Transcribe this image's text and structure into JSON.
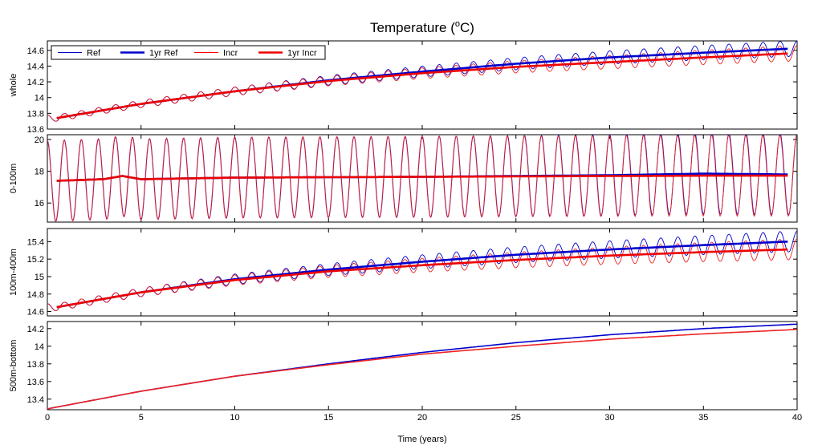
{
  "chart_data": {
    "type": "line",
    "title": "Temperature (°C)",
    "title_main": "Temperature (",
    "title_unit_sup": "o",
    "title_unit": "C)",
    "xlabel": "Time (years)",
    "xlim": [
      0,
      40
    ],
    "xticks": [
      0,
      5,
      10,
      15,
      20,
      25,
      30,
      35,
      40
    ],
    "grid": false,
    "legend": {
      "placement": "top-left of first panel",
      "entries": [
        {
          "label": "Ref",
          "color": "#0000cc",
          "style": "thin"
        },
        {
          "label": "1yr Ref",
          "color": "#0000cc",
          "style": "thick"
        },
        {
          "label": "Incr",
          "color": "#ff0000",
          "style": "thin"
        },
        {
          "label": "1yr Incr",
          "color": "#ee0000",
          "style": "thick"
        }
      ]
    },
    "colors": {
      "ref": "#0000cc",
      "incr": "#ee2222",
      "incr_thick": "#ee0000"
    },
    "panels": [
      {
        "ylabel": "whole",
        "ylim": [
          13.6,
          14.72
        ],
        "yticks": [
          13.6,
          13.8,
          14,
          14.2,
          14.4,
          14.6
        ],
        "ytick_labels": [
          "13.6",
          "13.8",
          "14",
          "14.2",
          "14.4",
          "14.6"
        ],
        "oscillation": {
          "periods_per_year": 1.1,
          "amplitude_start": 0.04,
          "amplitude_end": 0.1
        },
        "series": [
          {
            "name": "1yr Ref",
            "x": [
              0.5,
              5,
              10,
              15,
              20,
              25,
              30,
              35,
              39.5
            ],
            "y": [
              13.74,
              13.92,
              14.08,
              14.22,
              14.33,
              14.43,
              14.51,
              14.57,
              14.62
            ]
          },
          {
            "name": "1yr Incr",
            "x": [
              0.5,
              5,
              10,
              15,
              20,
              25,
              30,
              35,
              39.5
            ],
            "y": [
              13.74,
              13.92,
              14.08,
              14.21,
              14.31,
              14.39,
              14.45,
              14.51,
              14.56
            ]
          }
        ]
      },
      {
        "ylabel": "0-100m",
        "ylim": [
          14.8,
          20.3
        ],
        "yticks": [
          16,
          18,
          20
        ],
        "ytick_labels": [
          "16",
          "18",
          "20"
        ],
        "oscillation": {
          "periods_per_year": 1.1,
          "amplitude_start": 2.55,
          "amplitude_end": 2.55
        },
        "series": [
          {
            "name": "1yr Ref",
            "x": [
              0.5,
              3,
              4,
              5,
              10,
              20,
              30,
              35,
              39.5
            ],
            "y": [
              17.4,
              17.5,
              17.7,
              17.5,
              17.6,
              17.65,
              17.75,
              17.85,
              17.8
            ]
          },
          {
            "name": "1yr Incr",
            "x": [
              0.5,
              3,
              4,
              5,
              10,
              20,
              30,
              35,
              39.5
            ],
            "y": [
              17.4,
              17.5,
              17.7,
              17.5,
              17.6,
              17.65,
              17.7,
              17.72,
              17.72
            ]
          }
        ]
      },
      {
        "ylabel": "100m-400m",
        "ylim": [
          14.55,
          15.55
        ],
        "yticks": [
          14.6,
          14.8,
          15,
          15.2,
          15.4
        ],
        "ytick_labels": [
          "14.6",
          "14.8",
          "15",
          "15.2",
          "15.4"
        ],
        "oscillation": {
          "periods_per_year": 1.1,
          "amplitude_start": 0.04,
          "amplitude_end": 0.12
        },
        "series": [
          {
            "name": "1yr Ref",
            "x": [
              0.5,
              5,
              10,
              15,
              20,
              25,
              30,
              35,
              39.5
            ],
            "y": [
              14.65,
              14.82,
              14.97,
              15.08,
              15.17,
              15.25,
              15.31,
              15.36,
              15.4
            ]
          },
          {
            "name": "1yr Incr",
            "x": [
              0.5,
              5,
              10,
              15,
              20,
              25,
              30,
              35,
              39.5
            ],
            "y": [
              14.65,
              14.82,
              14.96,
              15.06,
              15.13,
              15.19,
              15.24,
              15.28,
              15.31
            ]
          }
        ]
      },
      {
        "ylabel": "500m-bottom",
        "ylim": [
          13.28,
          14.28
        ],
        "yticks": [
          13.4,
          13.6,
          13.8,
          14,
          14.2
        ],
        "ytick_labels": [
          "13.4",
          "13.6",
          "13.8",
          "14",
          "14.2"
        ],
        "oscillation": {
          "periods_per_year": 1.1,
          "amplitude_start": 0.0,
          "amplitude_end": 0.0
        },
        "series": [
          {
            "name": "Ref",
            "x": [
              0,
              5,
              10,
              15,
              20,
              25,
              30,
              35,
              40
            ],
            "y": [
              13.29,
              13.49,
              13.66,
              13.8,
              13.93,
              14.04,
              14.13,
              14.2,
              14.25
            ]
          },
          {
            "name": "Incr",
            "x": [
              0,
              5,
              10,
              15,
              20,
              25,
              30,
              35,
              40
            ],
            "y": [
              13.29,
              13.49,
              13.66,
              13.79,
              13.91,
              14.0,
              14.08,
              14.14,
              14.19
            ]
          }
        ]
      }
    ]
  }
}
